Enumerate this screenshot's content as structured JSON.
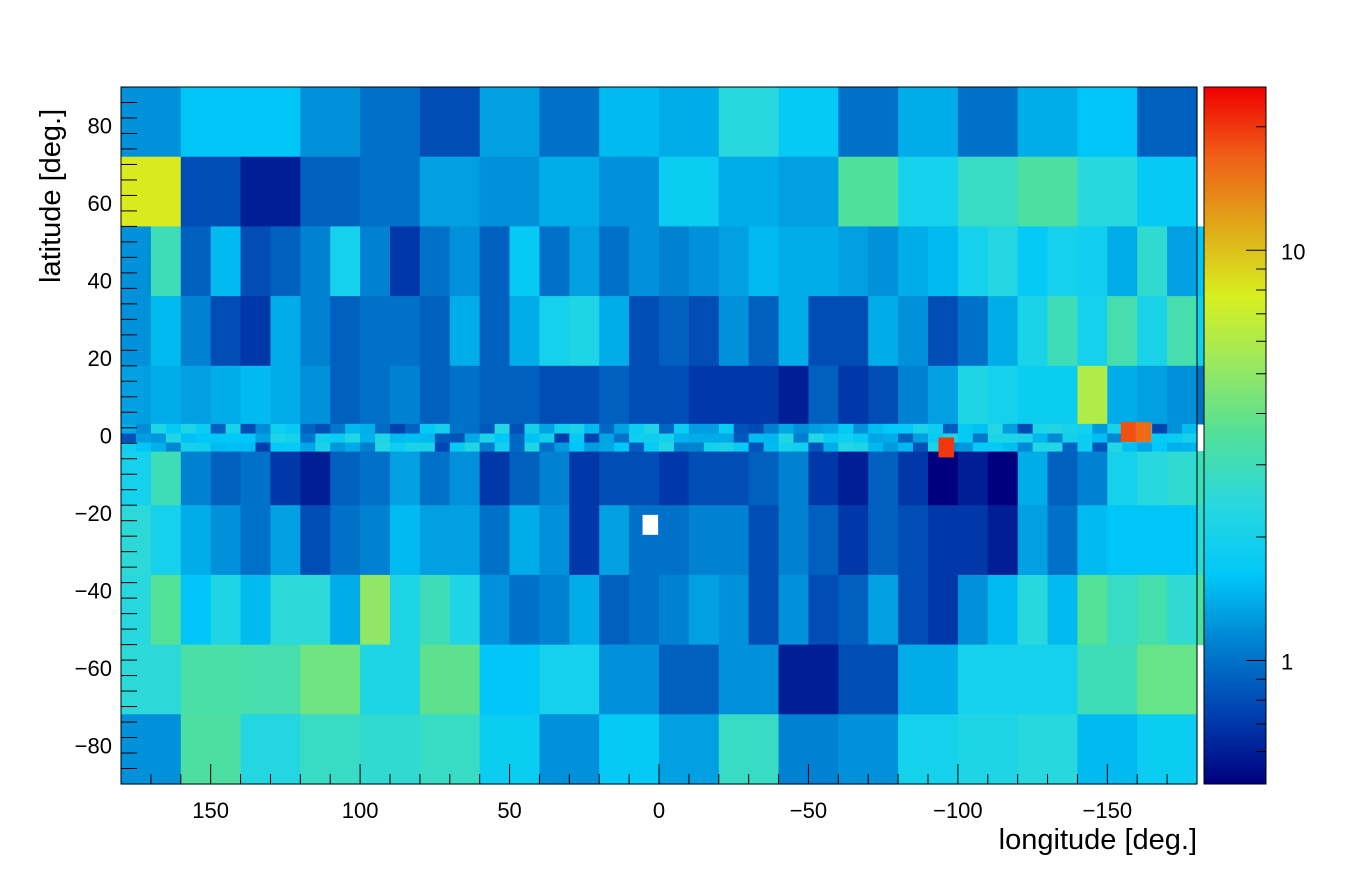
{
  "chart_data": {
    "type": "heatmap",
    "title": "",
    "xlabel": "longitude [deg.]",
    "ylabel": "latitude [deg.]",
    "xlim": [
      180,
      -180
    ],
    "ylim": [
      -90,
      90
    ],
    "x_reversed": true,
    "x_ticks": [
      150,
      100,
      50,
      0,
      -50,
      -100,
      -150
    ],
    "x_tick_labels": [
      "150",
      "100",
      "50",
      "0",
      "−50",
      "−100",
      "−150"
    ],
    "y_ticks": [
      80,
      60,
      40,
      20,
      0,
      -20,
      -40,
      -60,
      -80
    ],
    "y_tick_labels": [
      "80",
      "60",
      "40",
      "20",
      "0",
      "−20",
      "−40",
      "−60",
      "−80"
    ],
    "colorbar": {
      "scale": "log",
      "min": 0.5,
      "max": 25,
      "labeled_ticks": [
        1,
        10
      ],
      "labeled_tick_labels": [
        "1",
        "10"
      ],
      "colormap": [
        "#00007f",
        "#0040b0",
        "#0080d0",
        "#00c8f8",
        "#28d8e0",
        "#50e09a",
        "#98e860",
        "#d8f020",
        "#e0a818",
        "#f06018",
        "#f00000"
      ]
    },
    "bands": [
      {
        "lat": [
          72,
          90
        ],
        "lon_step": 20,
        "values": [
          1.2,
          1.6,
          1.6,
          1.2,
          1.0,
          0.8,
          1.3,
          1.0,
          1.5,
          1.4,
          2.4,
          1.7,
          1.0,
          1.4,
          1.0,
          1.4,
          1.6,
          0.9
        ]
      },
      {
        "lat": [
          54,
          72
        ],
        "lon_step": 20,
        "values": [
          8.0,
          0.8,
          0.6,
          0.9,
          1.0,
          1.3,
          1.2,
          1.4,
          1.2,
          1.8,
          1.4,
          1.3,
          3.5,
          2.0,
          2.8,
          3.4,
          2.4,
          1.7
        ]
      },
      {
        "lat": [
          36,
          54
        ],
        "lon_step": 10,
        "values": [
          1.2,
          3.0,
          0.9,
          1.5,
          0.8,
          0.9,
          1.1,
          2.0,
          1.1,
          0.7,
          1.0,
          1.2,
          0.9,
          1.7,
          1.0,
          1.3,
          1.0,
          1.2,
          1.1,
          1.2,
          1.3,
          1.5,
          1.4,
          1.4,
          1.3,
          1.2,
          1.4,
          1.5,
          2.0,
          2.3,
          1.7,
          2.0,
          1.9,
          1.4,
          2.6,
          1.3,
          1.6,
          1.3
        ]
      },
      {
        "lat": [
          18,
          36
        ],
        "lon_step": 10,
        "values": [
          1.2,
          1.5,
          1.1,
          0.8,
          0.7,
          1.4,
          1.1,
          0.9,
          1.0,
          1.0,
          0.9,
          1.4,
          0.9,
          1.4,
          2.0,
          2.2,
          1.4,
          0.8,
          0.9,
          0.8,
          1.2,
          0.9,
          1.4,
          0.8,
          0.8,
          1.4,
          1.2,
          0.8,
          1.0,
          1.4,
          2.1,
          3.0,
          2.0,
          3.2,
          2.1,
          3.2,
          1.9,
          1.1
        ]
      },
      {
        "lat": [
          3,
          18
        ],
        "lon_step": 10,
        "values": [
          1.3,
          1.4,
          1.3,
          1.4,
          1.5,
          1.4,
          1.2,
          0.9,
          1.0,
          1.1,
          0.9,
          1.0,
          0.9,
          0.9,
          0.8,
          0.8,
          0.9,
          0.8,
          0.8,
          0.7,
          0.7,
          0.7,
          0.6,
          0.9,
          0.7,
          0.8,
          1.1,
          1.3,
          2.2,
          2.0,
          1.8,
          1.8,
          6.0,
          1.4,
          1.3,
          1.2,
          1.0,
          1.3
        ]
      },
      {
        "lat": [
          -18,
          -4
        ],
        "lon_step": 10,
        "values": [
          2.0,
          3.0,
          1.1,
          0.9,
          1.0,
          0.7,
          0.6,
          0.9,
          1.0,
          1.3,
          1.0,
          1.2,
          0.7,
          0.9,
          1.1,
          0.7,
          0.8,
          0.8,
          0.7,
          0.8,
          0.8,
          0.9,
          1.1,
          0.7,
          0.6,
          0.9,
          0.7,
          0.5,
          0.6,
          0.45,
          1.4,
          0.9,
          1.1,
          2.0,
          2.4,
          2.6,
          3.0,
          1.4
        ]
      },
      {
        "lat": [
          -36,
          -18
        ],
        "lon_step": 10,
        "values": [
          2.5,
          2.0,
          1.4,
          1.2,
          1.0,
          1.3,
          0.8,
          1.0,
          1.1,
          1.5,
          1.3,
          1.3,
          1.0,
          1.4,
          1.2,
          0.7,
          1.3,
          1.0,
          1.0,
          1.1,
          1.1,
          0.8,
          1.1,
          0.9,
          0.7,
          0.9,
          0.8,
          0.7,
          0.7,
          0.6,
          1.3,
          1.0,
          1.5,
          1.6,
          1.6,
          1.6,
          2.6,
          2.4
        ]
      },
      {
        "lat": [
          -54,
          -36
        ],
        "lon_step": 10,
        "values": [
          2.4,
          3.6,
          1.6,
          2.2,
          1.5,
          2.5,
          2.5,
          1.4,
          5.0,
          2.2,
          3.0,
          2.2,
          1.2,
          1.0,
          1.1,
          1.4,
          0.9,
          1.0,
          1.1,
          1.3,
          1.2,
          0.8,
          1.2,
          0.8,
          0.9,
          1.3,
          0.8,
          0.7,
          1.2,
          1.5,
          2.4,
          1.5,
          3.6,
          2.8,
          3.2,
          2.6,
          3.5,
          2.8
        ]
      },
      {
        "lat": [
          -72,
          -54
        ],
        "lon_step": 20,
        "values": [
          2.5,
          3.3,
          3.2,
          4.2,
          2.2,
          3.8,
          1.6,
          2.0,
          1.2,
          0.9,
          1.2,
          0.6,
          0.8,
          1.4,
          2.0,
          2.0,
          3.0,
          4.0
        ]
      },
      {
        "lat": [
          -90,
          -72
        ],
        "lon_step": 20,
        "values": [
          1.2,
          3.4,
          2.3,
          2.8,
          2.6,
          2.8,
          1.8,
          1.2,
          1.7,
          1.3,
          2.8,
          1.1,
          1.2,
          2.0,
          2.2,
          2.4,
          1.5,
          1.8
        ]
      }
    ],
    "fine_bands": [
      {
        "lat": [
          -4,
          3
        ],
        "lon_step": 5,
        "rows": 3
      }
    ],
    "annotations": [
      {
        "lon": -96,
        "lat": -3,
        "value": 20,
        "note": "highest bin"
      },
      {
        "lon": -157,
        "lat": 1,
        "value": 18
      },
      {
        "lon": -162,
        "lat": 1,
        "value": 16
      },
      {
        "lon": 3,
        "lat": -23,
        "value": 0,
        "note": "empty bin"
      }
    ]
  }
}
